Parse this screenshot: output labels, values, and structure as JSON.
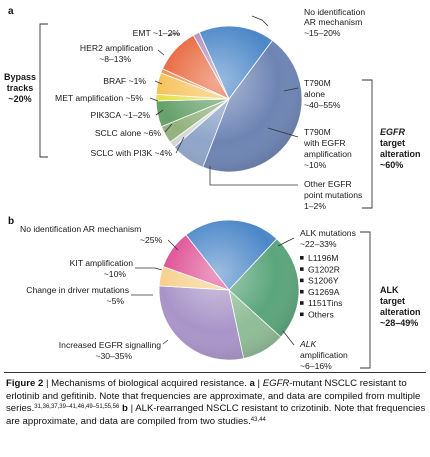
{
  "chart_data": [
    {
      "panel": "a",
      "type": "pie",
      "slices": [
        {
          "name": "No identification AR mechanism",
          "value": 17.5,
          "label": [
            "No identification",
            "AR mechanism",
            "~15–20%"
          ],
          "color": "#4b87c8"
        },
        {
          "name": "T790M alone",
          "value": 47.5,
          "label": [
            "T790M",
            "alone",
            "~40–55%"
          ],
          "color": "#6d84b4"
        },
        {
          "name": "T790M with EGFR amplification",
          "value": 8,
          "label": [
            "T790M",
            "with EGFR",
            "amplification",
            "~10%"
          ],
          "color": "#8fa5c9"
        },
        {
          "name": "Other EGFR point mutations",
          "value": 1.5,
          "label": [
            "Other EGFR",
            "point mutations",
            "1–2%"
          ],
          "color": "#d8d8d8"
        },
        {
          "name": "SCLC with PI3K",
          "value": 4,
          "label": [
            "SCLC with PI3K ~4%"
          ],
          "color": "#93b27d"
        },
        {
          "name": "SCLC alone",
          "value": 6,
          "label": [
            "SCLC alone ~6%"
          ],
          "color": "#66a06a"
        },
        {
          "name": "PIK3CA",
          "value": 1.5,
          "label": [
            "PIK3CA ~1–2%"
          ],
          "color": "#e5e04d"
        },
        {
          "name": "MET amplification",
          "value": 5,
          "label": [
            "MET amplification ~5%"
          ],
          "color": "#f7c25a"
        },
        {
          "name": "BRAF",
          "value": 1,
          "label": [
            "BRAF ~1%"
          ],
          "color": "#ee8e52"
        },
        {
          "name": "HER2 amplification",
          "value": 10.5,
          "label": [
            "HER2 amplification",
            "~8–13%"
          ],
          "color": "#e8663b"
        },
        {
          "name": "EMT",
          "value": 1.5,
          "label": [
            "EMT ~1–2%"
          ],
          "color": "#b490c2"
        }
      ],
      "brackets": {
        "left": [
          "Bypass",
          "tracks",
          "~20%"
        ],
        "right": [
          "EGFR",
          "target",
          "alteration",
          "~60%"
        ]
      }
    },
    {
      "panel": "b",
      "type": "pie",
      "slices": [
        {
          "name": "No identification AR mechanism",
          "value": 25,
          "label": [
            "No identification AR mechanism",
            "~25%"
          ],
          "color": "#4b87c8"
        },
        {
          "name": "ALK mutations",
          "value": 27.5,
          "label": [
            "ALK mutations",
            "~22–33%"
          ],
          "color": "#5aa57b"
        },
        {
          "name": "ALK amplification",
          "value": 11,
          "label": [
            "ALK",
            "amplification",
            "~6–16%"
          ],
          "color": "#8fbd96"
        },
        {
          "name": "Increased EGFR signalling",
          "value": 32.5,
          "label": [
            "Increased EGFR signalling",
            "~30–35%"
          ],
          "color": "#a994c8"
        },
        {
          "name": "Change in driver mutations",
          "value": 5,
          "label": [
            "Change in driver mutations",
            "~5%"
          ],
          "color": "#f6d08c"
        },
        {
          "name": "KIT amplification",
          "value": 10,
          "label": [
            "KIT amplification",
            "~10%"
          ],
          "color": "#de4f93"
        }
      ],
      "alk_list": [
        "L1196M",
        "G1202R",
        "S1206Y",
        "G1269A",
        "1151Tins",
        "Others"
      ],
      "brackets": {
        "right": [
          "ALK",
          "target",
          "alteration",
          "~28–49%"
        ]
      }
    }
  ],
  "caption": {
    "fig_label": "Figure 2",
    "sep": " | ",
    "title": "Mechanisms of biological acquired resistance.",
    "a_label": "a",
    "a_text_em": "EGFR",
    "a_text": "-mutant NSCLC resistant to erlotinib and gefitinib. Note that frequencies are approximate, and data are compiled from multiple series.",
    "a_refs": "31,36,37,39–41,46,49–51,55,56",
    "b_label": "b",
    "b_text": "ALK-rearranged NSCLC resistant to crizotinib. Note that frequencies are approximate, and data are compiled from two studies.",
    "b_refs": "43,44"
  }
}
